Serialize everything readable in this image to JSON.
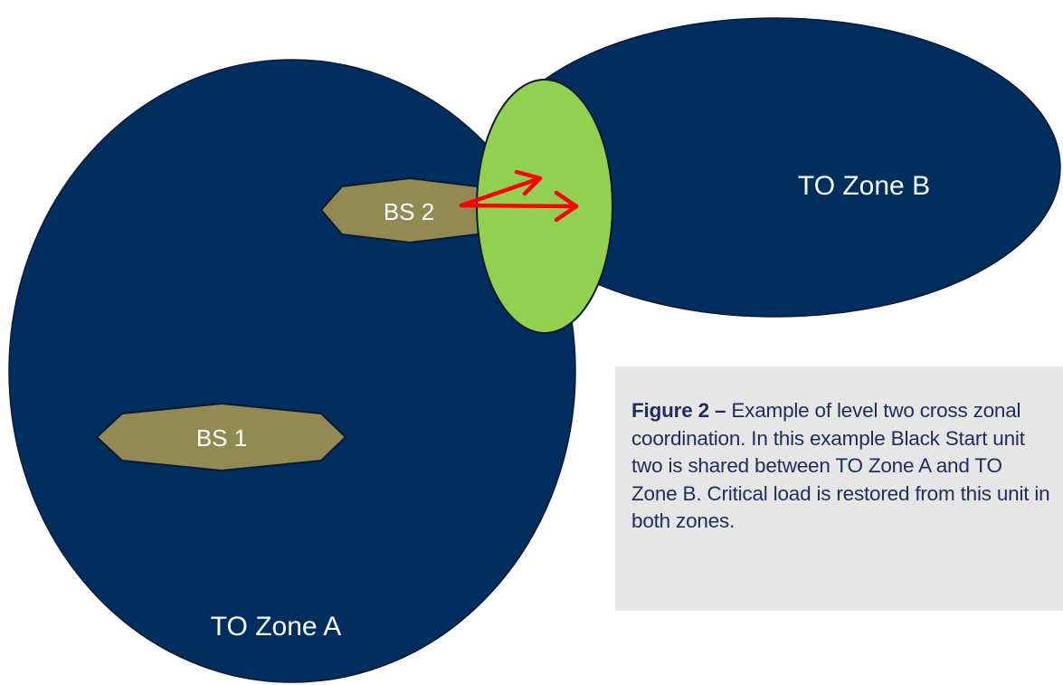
{
  "diagram": {
    "zone_a": {
      "label": "TO Zone A",
      "color": "#002e5f"
    },
    "zone_b": {
      "label": "TO Zone B",
      "color": "#002e5f"
    },
    "shared_region": {
      "color": "#92d050"
    },
    "units": {
      "bs1": {
        "label": "BS 1",
        "color": "#938953"
      },
      "bs2": {
        "label": "BS 2",
        "color": "#938953"
      }
    },
    "arrow_color": "#ff0000"
  },
  "caption": {
    "figure_number": "Figure 2 –",
    "text": "Example of level two cross zonal coordination. In this example Black Start unit two is shared between TO Zone A and TO Zone B. Critical load is restored from this unit in both zones."
  }
}
